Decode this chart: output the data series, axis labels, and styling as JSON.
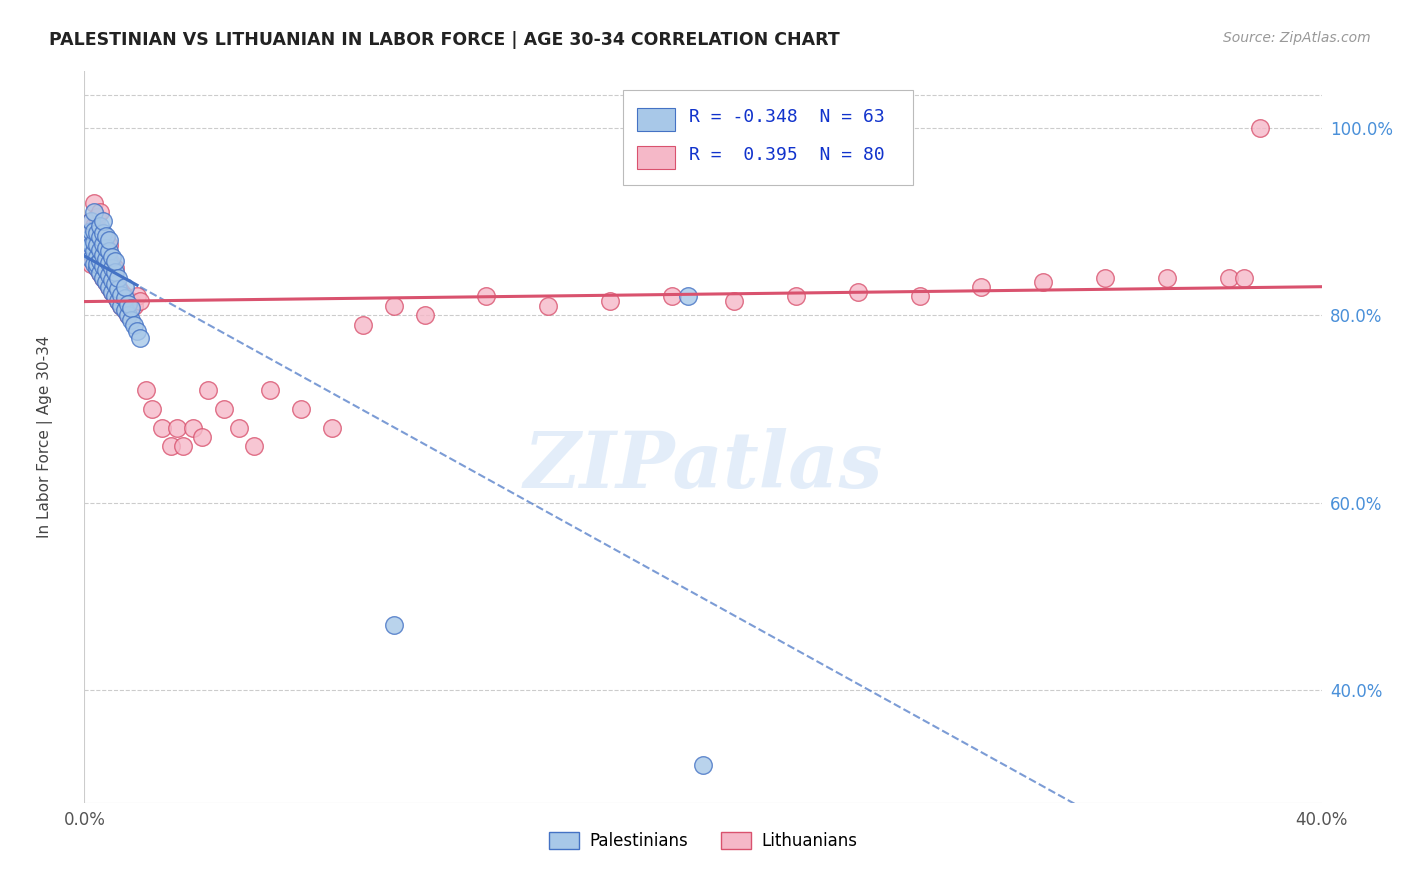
{
  "title": "PALESTINIAN VS LITHUANIAN IN LABOR FORCE | AGE 30-34 CORRELATION CHART",
  "source_text": "Source: ZipAtlas.com",
  "ylabel": "In Labor Force | Age 30-34",
  "xlim": [
    0.0,
    0.4
  ],
  "ylim": [
    0.28,
    1.06
  ],
  "yticks_right": [
    0.4,
    0.6,
    0.8,
    1.0
  ],
  "ytick_labels_right": [
    "40.0%",
    "60.0%",
    "80.0%",
    "100.0%"
  ],
  "blue_R": "-0.348",
  "blue_N": "63",
  "pink_R": "0.395",
  "pink_N": "80",
  "blue_color": "#a8c8e8",
  "pink_color": "#f5b8c8",
  "blue_line_color": "#4472c4",
  "pink_line_color": "#d9526e",
  "legend_label_blue": "Palestinians",
  "legend_label_pink": "Lithuanians",
  "watermark": "ZIPatlas",
  "blue_scatter_x": [
    0.001,
    0.001,
    0.002,
    0.002,
    0.002,
    0.002,
    0.003,
    0.003,
    0.003,
    0.003,
    0.003,
    0.004,
    0.004,
    0.004,
    0.004,
    0.004,
    0.005,
    0.005,
    0.005,
    0.005,
    0.005,
    0.006,
    0.006,
    0.006,
    0.006,
    0.006,
    0.006,
    0.007,
    0.007,
    0.007,
    0.007,
    0.007,
    0.008,
    0.008,
    0.008,
    0.008,
    0.008,
    0.009,
    0.009,
    0.009,
    0.009,
    0.01,
    0.01,
    0.01,
    0.01,
    0.011,
    0.011,
    0.011,
    0.012,
    0.012,
    0.013,
    0.013,
    0.013,
    0.014,
    0.014,
    0.015,
    0.015,
    0.016,
    0.017,
    0.018,
    0.1,
    0.195,
    0.2
  ],
  "blue_scatter_y": [
    0.87,
    0.88,
    0.86,
    0.875,
    0.89,
    0.9,
    0.855,
    0.868,
    0.878,
    0.89,
    0.91,
    0.85,
    0.862,
    0.875,
    0.888,
    0.855,
    0.845,
    0.858,
    0.87,
    0.883,
    0.895,
    0.84,
    0.852,
    0.864,
    0.876,
    0.888,
    0.9,
    0.835,
    0.848,
    0.86,
    0.872,
    0.884,
    0.83,
    0.843,
    0.856,
    0.868,
    0.88,
    0.825,
    0.838,
    0.85,
    0.862,
    0.82,
    0.833,
    0.846,
    0.858,
    0.815,
    0.828,
    0.84,
    0.81,
    0.822,
    0.805,
    0.818,
    0.83,
    0.8,
    0.812,
    0.795,
    0.808,
    0.79,
    0.783,
    0.776,
    0.47,
    0.82,
    0.32
  ],
  "pink_scatter_x": [
    0.001,
    0.001,
    0.002,
    0.002,
    0.002,
    0.003,
    0.003,
    0.003,
    0.003,
    0.004,
    0.004,
    0.004,
    0.004,
    0.005,
    0.005,
    0.005,
    0.005,
    0.005,
    0.006,
    0.006,
    0.006,
    0.006,
    0.007,
    0.007,
    0.007,
    0.007,
    0.008,
    0.008,
    0.008,
    0.008,
    0.009,
    0.009,
    0.009,
    0.01,
    0.01,
    0.01,
    0.011,
    0.011,
    0.012,
    0.012,
    0.013,
    0.013,
    0.014,
    0.015,
    0.016,
    0.017,
    0.018,
    0.02,
    0.022,
    0.025,
    0.028,
    0.03,
    0.032,
    0.035,
    0.038,
    0.04,
    0.045,
    0.05,
    0.055,
    0.06,
    0.07,
    0.08,
    0.09,
    0.1,
    0.11,
    0.13,
    0.15,
    0.17,
    0.19,
    0.21,
    0.23,
    0.25,
    0.27,
    0.29,
    0.31,
    0.33,
    0.35,
    0.37,
    0.375,
    0.38
  ],
  "pink_scatter_y": [
    0.87,
    0.885,
    0.855,
    0.87,
    0.9,
    0.86,
    0.875,
    0.895,
    0.92,
    0.85,
    0.865,
    0.88,
    0.905,
    0.845,
    0.86,
    0.875,
    0.89,
    0.91,
    0.84,
    0.855,
    0.87,
    0.885,
    0.835,
    0.85,
    0.865,
    0.88,
    0.83,
    0.845,
    0.86,
    0.875,
    0.825,
    0.84,
    0.855,
    0.82,
    0.835,
    0.85,
    0.815,
    0.83,
    0.81,
    0.825,
    0.805,
    0.82,
    0.8,
    0.815,
    0.81,
    0.82,
    0.815,
    0.72,
    0.7,
    0.68,
    0.66,
    0.68,
    0.66,
    0.68,
    0.67,
    0.72,
    0.7,
    0.68,
    0.66,
    0.72,
    0.7,
    0.68,
    0.79,
    0.81,
    0.8,
    0.82,
    0.81,
    0.815,
    0.82,
    0.815,
    0.82,
    0.825,
    0.82,
    0.83,
    0.835,
    0.84,
    0.84,
    0.84,
    0.84,
    1.0
  ]
}
